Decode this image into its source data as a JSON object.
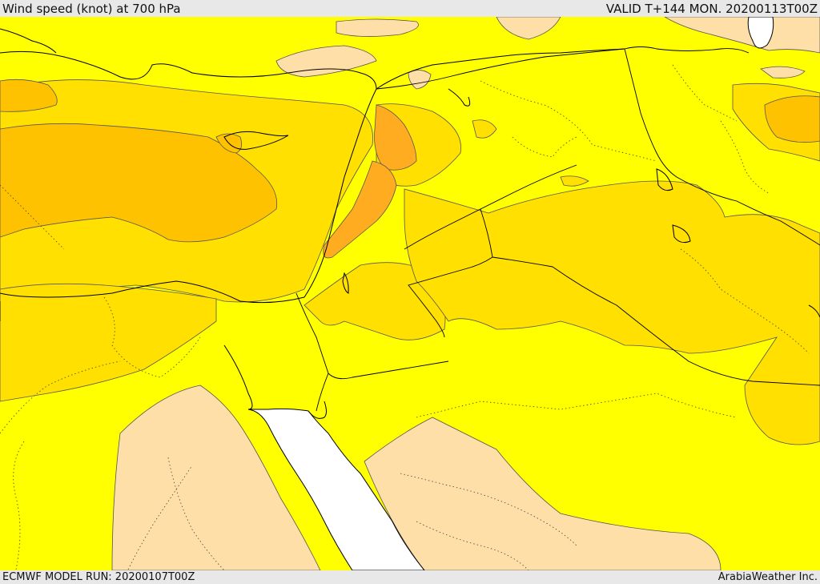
{
  "header": {
    "title": "Wind speed (knot) at 700 hPa",
    "valid": "VALID T+144 MON. 20200113T00Z"
  },
  "footer": {
    "model_run": "ECMWF MODEL RUN: 20200107T00Z",
    "credit": "ArabiaWeather Inc."
  },
  "colors": {
    "sea": "#ffffff",
    "band_low": "#ffdfa8",
    "band_1": "#ffff00",
    "band_2": "#ffe000",
    "band_3": "#ffc200",
    "band_4": "#ffac20",
    "coast": "#000000",
    "border": "#000000",
    "admin": "#444444"
  }
}
